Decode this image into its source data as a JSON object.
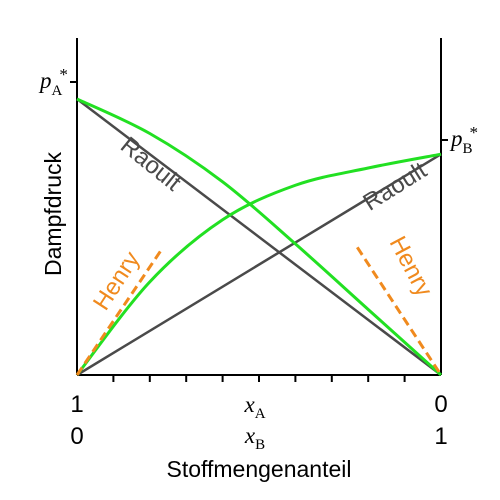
{
  "chart_data": {
    "type": "line",
    "title": "",
    "ylabel": "Dampfdruck",
    "xlabel": "Stoffmengenanteil",
    "x_axis_top": {
      "symbol": "x",
      "subscript": "A",
      "left_tick": "1",
      "right_tick": "0"
    },
    "x_axis_bottom": {
      "symbol": "x",
      "subscript": "B",
      "left_tick": "0",
      "right_tick": "1"
    },
    "xlim": [
      0,
      1
    ],
    "ylim": [
      0,
      1
    ],
    "minor_ticks": [
      0.1,
      0.2,
      0.3,
      0.4,
      0.5,
      0.6,
      0.7,
      0.8,
      0.9
    ],
    "pA_star": {
      "base": "p",
      "sub": "A",
      "sup": "*",
      "value": 0.8
    },
    "pB_star": {
      "base": "p",
      "sub": "B",
      "sup": "*",
      "value": 0.64
    },
    "series": [
      {
        "name": "Raoult",
        "kind": "raoult-A",
        "color": "#4a4a4a",
        "x": [
          0,
          1
        ],
        "y": [
          0.8,
          0
        ]
      },
      {
        "name": "Raoult",
        "kind": "raoult-B",
        "color": "#4a4a4a",
        "x": [
          0,
          1
        ],
        "y": [
          0,
          0.64
        ]
      },
      {
        "kind": "real-A",
        "color": "#22e022",
        "x": [
          0,
          0.2,
          0.4,
          0.6,
          0.8,
          1.0
        ],
        "y": [
          0.8,
          0.7,
          0.56,
          0.38,
          0.19,
          0
        ]
      },
      {
        "kind": "real-B",
        "color": "#22e022",
        "x": [
          0,
          0.2,
          0.4,
          0.6,
          0.8,
          1.0
        ],
        "y": [
          0,
          0.27,
          0.45,
          0.55,
          0.6,
          0.64
        ]
      },
      {
        "name": "Henry",
        "kind": "henry-B",
        "color": "#f08a1e",
        "x": [
          0,
          0.23
        ],
        "y": [
          0,
          0.36
        ]
      },
      {
        "name": "Henry",
        "kind": "henry-A",
        "color": "#f08a1e",
        "x": [
          0.77,
          1.0
        ],
        "y": [
          0.37,
          0
        ]
      }
    ],
    "labels": {
      "raoult_left": "Raoult",
      "raoult_right": "Raoult",
      "henry_left": "Henry",
      "henry_right": "Henry"
    },
    "colors": {
      "axis": "#000000",
      "raoult": "#4a4a4a",
      "real": "#22e022",
      "henry": "#f08a1e",
      "label_raoult": "#4a4a4a",
      "label_henry": "#f08a1e"
    }
  }
}
